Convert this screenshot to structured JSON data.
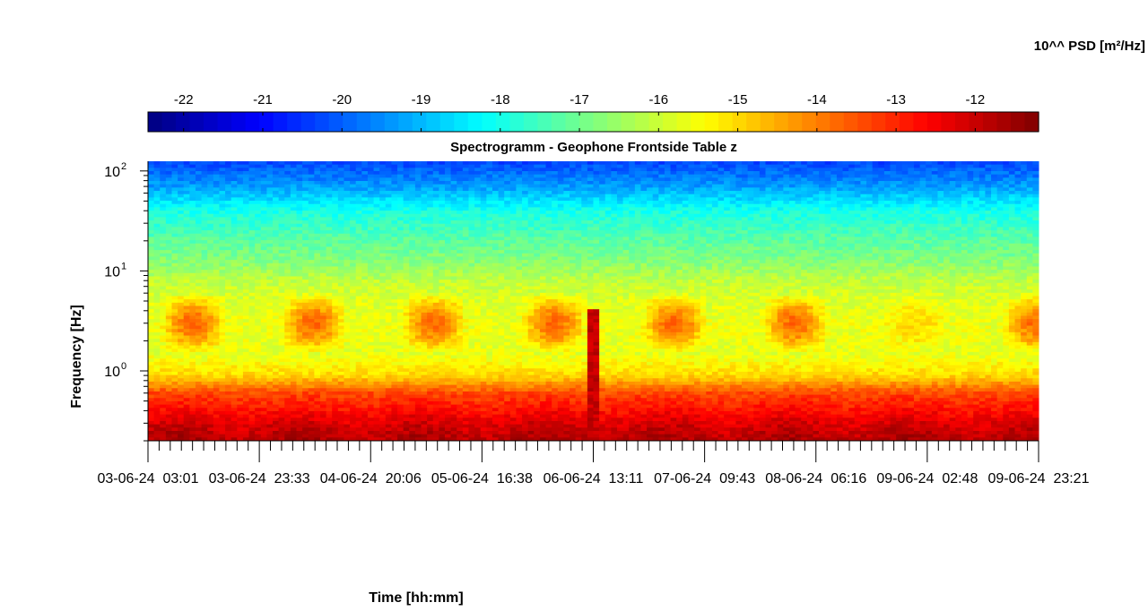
{
  "chart_data": {
    "type": "heatmap",
    "title": "Spectrogramm - Geophone Frontside Table z",
    "xlabel": "Time [hh:mm]",
    "ylabel": "Frequency [Hz]",
    "colorbar_label": "10^^ PSD [m²/Hz]",
    "colormap": "jet",
    "y_scale": "log",
    "ylim": [
      0.2,
      125
    ],
    "y_ticks": [
      {
        "value": 1,
        "base": "10",
        "exp": "0"
      },
      {
        "value": 10,
        "base": "10",
        "exp": "1"
      },
      {
        "value": 100,
        "base": "10",
        "exp": "2"
      }
    ],
    "x_tick_labels": [
      "03-06-24  03:01",
      "03-06-24  23:33",
      "04-06-24  20:06",
      "05-06-24  16:38",
      "06-06-24  13:11",
      "07-06-24  09:43",
      "08-06-24  06:16",
      "09-06-24  02:48",
      "09-06-24  23:21"
    ],
    "colorbar_range": [
      -22.45,
      -11.2
    ],
    "colorbar_ticks": [
      -22,
      -21,
      -20,
      -19,
      -18,
      -17,
      -16,
      -15,
      -14,
      -13,
      -12
    ],
    "grid": false,
    "psd_bands": [
      {
        "f": 0.2,
        "psd": -11.75
      },
      {
        "f": 0.28,
        "psd": -12.1
      },
      {
        "f": 0.4,
        "psd": -12.7
      },
      {
        "f": 0.6,
        "psd": -13.4
      },
      {
        "f": 0.9,
        "psd": -15.0
      },
      {
        "f": 1.5,
        "psd": -15.7
      },
      {
        "f": 3.0,
        "psd": -15.6
      },
      {
        "f": 5.0,
        "psd": -15.8
      },
      {
        "f": 8.0,
        "psd": -16.1
      },
      {
        "f": 12,
        "psd": -16.7
      },
      {
        "f": 20,
        "psd": -17.2
      },
      {
        "f": 40,
        "psd": -18.0
      },
      {
        "f": 70,
        "psd": -19.3
      },
      {
        "f": 125,
        "psd": -20.3
      }
    ],
    "daytime_activity": {
      "f_low": 1.5,
      "f_high": 6.0,
      "peak_psd": -13.6
    },
    "transient_event": {
      "time": "06-06-24  13:11",
      "f_low": 0.2,
      "f_high": 4.0,
      "psd": -12.0
    }
  }
}
